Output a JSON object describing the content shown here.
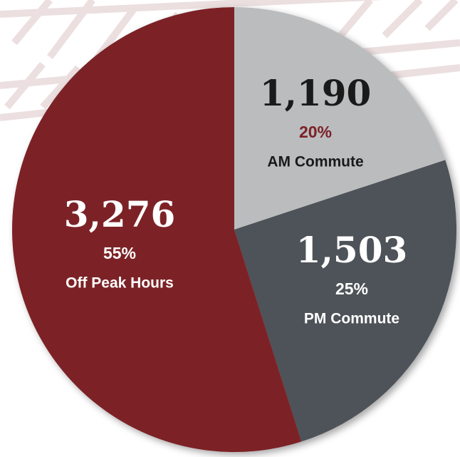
{
  "chart_data": {
    "type": "pie",
    "categories": [
      "AM Commute",
      "PM Commute",
      "Off Peak Hours"
    ],
    "values": [
      1190,
      1503,
      3276
    ],
    "value_labels": [
      "1,190",
      "1,503",
      "3,276"
    ],
    "percent_labels": [
      "20%",
      "25%",
      "55%"
    ],
    "colors": [
      "#bbbcbe",
      "#4e5259",
      "#7b2127"
    ]
  }
}
